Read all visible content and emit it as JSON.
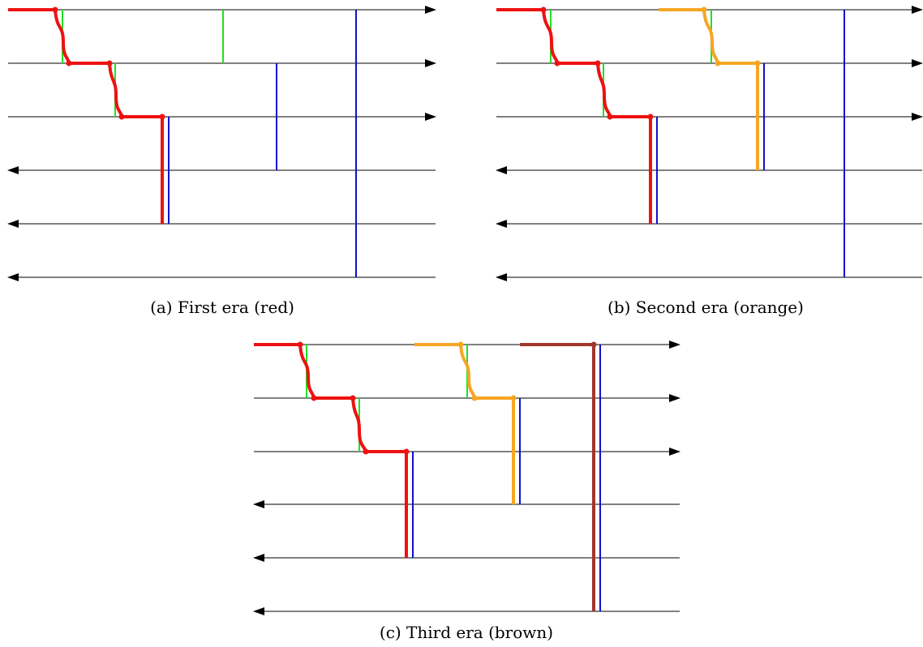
{
  "colors": {
    "axis": "#000000",
    "green": "#22e022",
    "blue": "#1010cc",
    "red": "#ee1111",
    "orange": "#f5a623",
    "brown": "#a0362c"
  },
  "panels": {
    "a": {
      "caption": "(a) First era (red)"
    },
    "b": {
      "caption": "(b) Second era (orange)"
    },
    "c": {
      "caption": "(c) Third era (brown)"
    }
  }
}
